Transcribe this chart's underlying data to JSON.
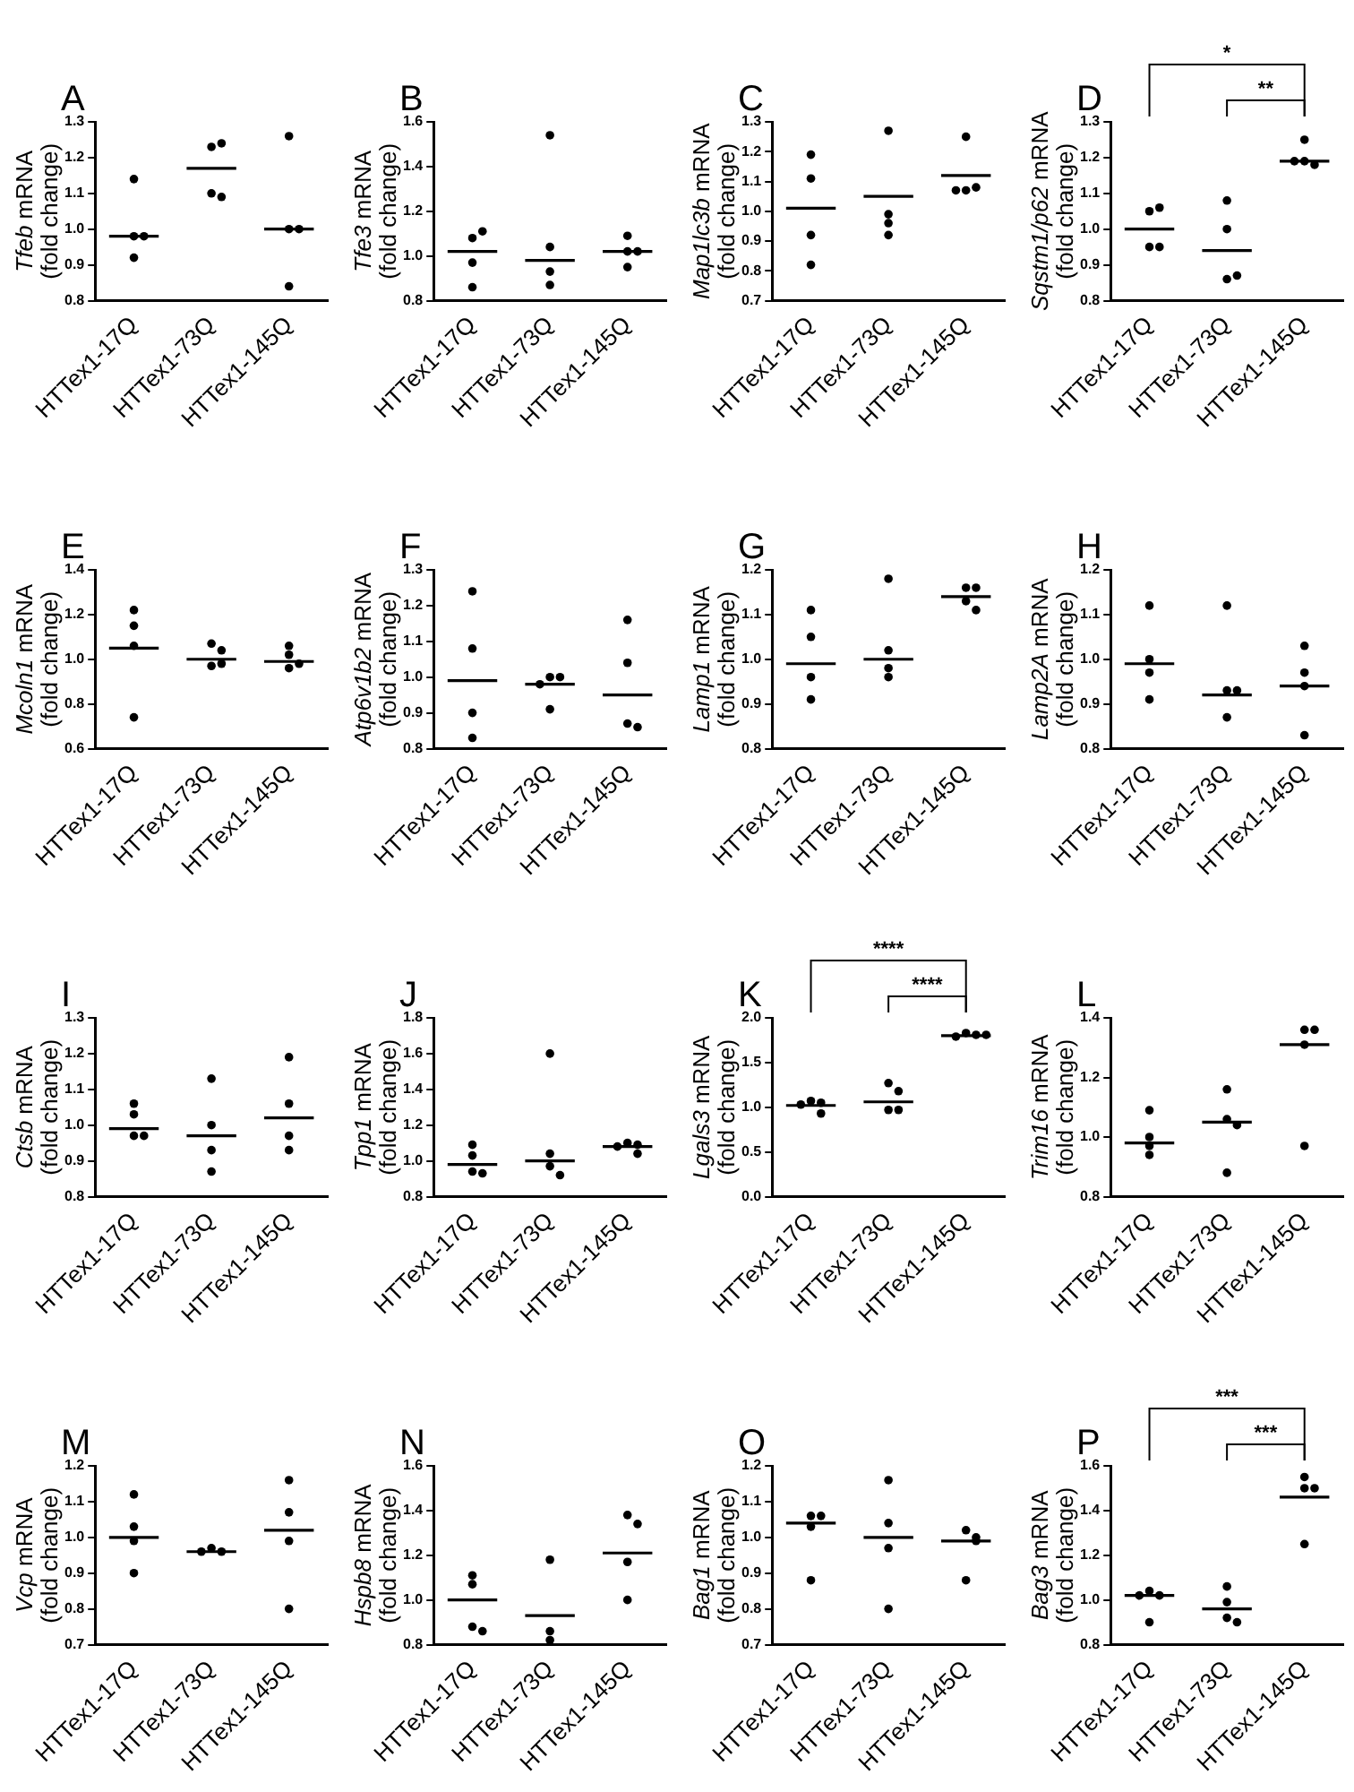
{
  "chart_data": [
    {
      "type": "scatter",
      "title": "A",
      "ylabel": "Tfeb mRNA (fold change)",
      "categories": [
        "HTTex1-17Q",
        "HTTex1-73Q",
        "HTTex1-145Q"
      ],
      "series": [
        {
          "x": [
            "HTTex1-17Q",
            "HTTex1-17Q",
            "HTTex1-17Q",
            "HTTex1-17Q",
            "HTTex1-73Q",
            "HTTex1-73Q",
            "HTTex1-73Q",
            "HTTex1-73Q",
            "HTTex1-145Q",
            "HTTex1-145Q",
            "HTTex1-145Q",
            "HTTex1-145Q"
          ],
          "values": [
            1.14,
            0.98,
            0.98,
            0.92,
            1.23,
            1.24,
            1.1,
            1.09,
            1.26,
            1.0,
            1.0,
            0.84
          ],
          "color": "#000000",
          "marker": "circle"
        },
        {
          "type": "box",
          "color": "#000000",
          "boxes": [
            {
              "low": 0.98,
              "q1": 0.98,
              "median": 0.98,
              "q3": 0.98,
              "high": 0.98
            },
            {
              "low": 1.17,
              "q1": 1.17,
              "median": 1.17,
              "q3": 1.17,
              "high": 1.17
            },
            {
              "low": 1.0,
              "q1": 1.0,
              "median": 1.0,
              "q3": 1.0,
              "high": 1.0
            }
          ]
        }
      ],
      "ylim": [
        0.8,
        1.3
      ],
      "yticks": [
        {
          "value": 0.8,
          "label": "0.8"
        },
        {
          "value": 0.9,
          "label": "0.9"
        },
        {
          "value": 1.0,
          "label": "1.0"
        },
        {
          "value": 1.1,
          "label": "1.1"
        },
        {
          "value": 1.2,
          "label": "1.2"
        },
        {
          "value": 1.3,
          "label": "1.3"
        }
      ],
      "grid": false,
      "legend": false
    },
    {
      "type": "scatter",
      "title": "B",
      "ylabel": "Tfe3 mRNA (fold change)",
      "categories": [
        "HTTex1-17Q",
        "HTTex1-73Q",
        "HTTex1-145Q"
      ],
      "series": [
        {
          "x": [
            "HTTex1-17Q",
            "HTTex1-17Q",
            "HTTex1-17Q",
            "HTTex1-17Q",
            "HTTex1-73Q",
            "HTTex1-73Q",
            "HTTex1-73Q",
            "HTTex1-73Q",
            "HTTex1-145Q",
            "HTTex1-145Q",
            "HTTex1-145Q",
            "HTTex1-145Q"
          ],
          "values": [
            1.08,
            1.11,
            0.97,
            0.86,
            1.54,
            1.04,
            0.93,
            0.87,
            1.09,
            1.02,
            1.02,
            0.95
          ],
          "color": "#000000",
          "marker": "circle"
        },
        {
          "type": "box",
          "color": "#000000",
          "boxes": [
            {
              "low": 1.02,
              "q1": 1.02,
              "median": 1.02,
              "q3": 1.02,
              "high": 1.02
            },
            {
              "low": 0.98,
              "q1": 0.98,
              "median": 0.98,
              "q3": 0.98,
              "high": 0.98
            },
            {
              "low": 1.02,
              "q1": 1.02,
              "median": 1.02,
              "q3": 1.02,
              "high": 1.02
            }
          ]
        }
      ],
      "ylim": [
        0.8,
        1.6
      ],
      "yticks": [
        {
          "value": 0.8,
          "label": "0.8"
        },
        {
          "value": 1.0,
          "label": "1.0"
        },
        {
          "value": 1.2,
          "label": "1.2"
        },
        {
          "value": 1.4,
          "label": "1.4"
        },
        {
          "value": 1.6,
          "label": "1.6"
        }
      ],
      "grid": false,
      "legend": false
    },
    {
      "type": "scatter",
      "title": "C",
      "ylabel": "Map1lc3b mRNA (fold change)",
      "categories": [
        "HTTex1-17Q",
        "HTTex1-73Q",
        "HTTex1-145Q"
      ],
      "series": [
        {
          "x": [
            "HTTex1-17Q",
            "HTTex1-17Q",
            "HTTex1-17Q",
            "HTTex1-17Q",
            "HTTex1-73Q",
            "HTTex1-73Q",
            "HTTex1-73Q",
            "HTTex1-73Q",
            "HTTex1-145Q",
            "HTTex1-145Q",
            "HTTex1-145Q",
            "HTTex1-145Q"
          ],
          "values": [
            1.19,
            1.11,
            0.92,
            0.82,
            1.27,
            0.99,
            0.96,
            0.92,
            1.25,
            1.07,
            1.08,
            1.07
          ],
          "color": "#000000",
          "marker": "circle"
        },
        {
          "type": "box",
          "color": "#000000",
          "boxes": [
            {
              "low": 1.01,
              "q1": 1.01,
              "median": 1.01,
              "q3": 1.01,
              "high": 1.01
            },
            {
              "low": 1.05,
              "q1": 1.05,
              "median": 1.05,
              "q3": 1.05,
              "high": 1.05
            },
            {
              "low": 1.12,
              "q1": 1.12,
              "median": 1.12,
              "q3": 1.12,
              "high": 1.12
            }
          ]
        }
      ],
      "ylim": [
        0.7,
        1.3
      ],
      "yticks": [
        {
          "value": 0.7,
          "label": "0.7"
        },
        {
          "value": 0.8,
          "label": "0.8"
        },
        {
          "value": 0.9,
          "label": "0.9"
        },
        {
          "value": 1.0,
          "label": "1.0"
        },
        {
          "value": 1.1,
          "label": "1.1"
        },
        {
          "value": 1.2,
          "label": "1.2"
        },
        {
          "value": 1.3,
          "label": "1.3"
        }
      ],
      "grid": false,
      "legend": false
    },
    {
      "type": "scatter",
      "title": "D",
      "ylabel": "Sqstm1/p62 mRNA (fold change)",
      "categories": [
        "HTTex1-17Q",
        "HTTex1-73Q",
        "HTTex1-145Q"
      ],
      "series": [
        {
          "x": [
            "HTTex1-17Q",
            "HTTex1-17Q",
            "HTTex1-17Q",
            "HTTex1-17Q",
            "HTTex1-73Q",
            "HTTex1-73Q",
            "HTTex1-73Q",
            "HTTex1-73Q",
            "HTTex1-145Q",
            "HTTex1-145Q",
            "HTTex1-145Q",
            "HTTex1-145Q"
          ],
          "values": [
            1.05,
            1.06,
            0.95,
            0.95,
            1.08,
            1.0,
            0.86,
            0.87,
            1.25,
            1.19,
            1.18,
            1.19
          ],
          "color": "#000000",
          "marker": "circle"
        },
        {
          "type": "box",
          "color": "#000000",
          "boxes": [
            {
              "low": 1.0,
              "q1": 1.0,
              "median": 1.0,
              "q3": 1.0,
              "high": 1.0
            },
            {
              "low": 0.94,
              "q1": 0.94,
              "median": 0.94,
              "q3": 0.94,
              "high": 0.94
            },
            {
              "low": 1.19,
              "q1": 1.19,
              "median": 1.19,
              "q3": 1.19,
              "high": 1.19
            }
          ]
        }
      ],
      "ylim": [
        0.8,
        1.3
      ],
      "yticks": [
        {
          "value": 0.8,
          "label": "0.8"
        },
        {
          "value": 0.9,
          "label": "0.9"
        },
        {
          "value": 1.0,
          "label": "1.0"
        },
        {
          "value": 1.1,
          "label": "1.1"
        },
        {
          "value": 1.2,
          "label": "1.2"
        },
        {
          "value": 1.3,
          "label": "1.3"
        }
      ],
      "grid": false,
      "legend": false,
      "annotations": [
        "*",
        "**"
      ]
    },
    {
      "type": "scatter",
      "title": "E",
      "ylabel": "Mcoln1 mRNA (fold change)",
      "categories": [
        "HTTex1-17Q",
        "HTTex1-73Q",
        "HTTex1-145Q"
      ],
      "series": [
        {
          "x": [
            "HTTex1-17Q",
            "HTTex1-17Q",
            "HTTex1-17Q",
            "HTTex1-17Q",
            "HTTex1-73Q",
            "HTTex1-73Q",
            "HTTex1-73Q",
            "HTTex1-73Q",
            "HTTex1-145Q",
            "HTTex1-145Q",
            "HTTex1-145Q",
            "HTTex1-145Q"
          ],
          "values": [
            1.22,
            1.15,
            1.06,
            0.74,
            1.07,
            1.04,
            0.97,
            0.98,
            1.06,
            1.02,
            0.96,
            0.98
          ],
          "color": "#000000",
          "marker": "circle"
        },
        {
          "type": "box",
          "color": "#000000",
          "boxes": [
            {
              "low": 1.05,
              "q1": 1.05,
              "median": 1.05,
              "q3": 1.05,
              "high": 1.05
            },
            {
              "low": 1.0,
              "q1": 1.0,
              "median": 1.0,
              "q3": 1.0,
              "high": 1.0
            },
            {
              "low": 0.99,
              "q1": 0.99,
              "median": 0.99,
              "q3": 0.99,
              "high": 0.99
            }
          ]
        }
      ],
      "ylim": [
        0.6,
        1.4
      ],
      "yticks": [
        {
          "value": 0.6,
          "label": "0.6"
        },
        {
          "value": 0.8,
          "label": "0.8"
        },
        {
          "value": 1.0,
          "label": "1.0"
        },
        {
          "value": 1.2,
          "label": "1.2"
        },
        {
          "value": 1.4,
          "label": "1.4"
        }
      ],
      "grid": false,
      "legend": false
    },
    {
      "type": "scatter",
      "title": "F",
      "ylabel": "Atp6v1b2 mRNA (fold change)",
      "categories": [
        "HTTex1-17Q",
        "HTTex1-73Q",
        "HTTex1-145Q"
      ],
      "series": [
        {
          "x": [
            "HTTex1-17Q",
            "HTTex1-17Q",
            "HTTex1-17Q",
            "HTTex1-17Q",
            "HTTex1-73Q",
            "HTTex1-73Q",
            "HTTex1-73Q",
            "HTTex1-73Q",
            "HTTex1-145Q",
            "HTTex1-145Q",
            "HTTex1-145Q",
            "HTTex1-145Q"
          ],
          "values": [
            1.24,
            1.08,
            0.9,
            0.83,
            1.0,
            1.0,
            0.98,
            0.91,
            1.16,
            1.04,
            0.87,
            0.86
          ],
          "color": "#000000",
          "marker": "circle"
        },
        {
          "type": "box",
          "color": "#000000",
          "boxes": [
            {
              "low": 0.99,
              "q1": 0.99,
              "median": 0.99,
              "q3": 0.99,
              "high": 0.99
            },
            {
              "low": 0.98,
              "q1": 0.98,
              "median": 0.98,
              "q3": 0.98,
              "high": 0.98
            },
            {
              "low": 0.95,
              "q1": 0.95,
              "median": 0.95,
              "q3": 0.95,
              "high": 0.95
            }
          ]
        }
      ],
      "ylim": [
        0.8,
        1.3
      ],
      "yticks": [
        {
          "value": 0.8,
          "label": "0.8"
        },
        {
          "value": 0.9,
          "label": "0.9"
        },
        {
          "value": 1.0,
          "label": "1.0"
        },
        {
          "value": 1.1,
          "label": "1.1"
        },
        {
          "value": 1.2,
          "label": "1.2"
        },
        {
          "value": 1.3,
          "label": "1.3"
        }
      ],
      "grid": false,
      "legend": false
    },
    {
      "type": "scatter",
      "title": "G",
      "ylabel": "Lamp1 mRNA (fold change)",
      "categories": [
        "HTTex1-17Q",
        "HTTex1-73Q",
        "HTTex1-145Q"
      ],
      "series": [
        {
          "x": [
            "HTTex1-17Q",
            "HTTex1-17Q",
            "HTTex1-17Q",
            "HTTex1-17Q",
            "HTTex1-73Q",
            "HTTex1-73Q",
            "HTTex1-73Q",
            "HTTex1-73Q",
            "HTTex1-145Q",
            "HTTex1-145Q",
            "HTTex1-145Q",
            "HTTex1-145Q"
          ],
          "values": [
            1.11,
            1.05,
            0.96,
            0.91,
            1.18,
            1.02,
            0.98,
            0.96,
            1.16,
            1.16,
            1.13,
            1.11
          ],
          "color": "#000000",
          "marker": "circle"
        },
        {
          "type": "box",
          "color": "#000000",
          "boxes": [
            {
              "low": 0.99,
              "q1": 0.99,
              "median": 0.99,
              "q3": 0.99,
              "high": 0.99
            },
            {
              "low": 1.0,
              "q1": 1.0,
              "median": 1.0,
              "q3": 1.0,
              "high": 1.0
            },
            {
              "low": 1.14,
              "q1": 1.14,
              "median": 1.14,
              "q3": 1.14,
              "high": 1.14
            }
          ]
        }
      ],
      "ylim": [
        0.8,
        1.2
      ],
      "yticks": [
        {
          "value": 0.8,
          "label": "0.8"
        },
        {
          "value": 0.9,
          "label": "0.9"
        },
        {
          "value": 1.0,
          "label": "1.0"
        },
        {
          "value": 1.1,
          "label": "1.1"
        },
        {
          "value": 1.2,
          "label": "1.2"
        }
      ],
      "grid": false,
      "legend": false
    },
    {
      "type": "scatter",
      "title": "H",
      "ylabel": "Lamp2A mRNA (fold change)",
      "categories": [
        "HTTex1-17Q",
        "HTTex1-73Q",
        "HTTex1-145Q"
      ],
      "series": [
        {
          "x": [
            "HTTex1-17Q",
            "HTTex1-17Q",
            "HTTex1-17Q",
            "HTTex1-17Q",
            "HTTex1-73Q",
            "HTTex1-73Q",
            "HTTex1-73Q",
            "HTTex1-73Q",
            "HTTex1-145Q",
            "HTTex1-145Q",
            "HTTex1-145Q",
            "HTTex1-145Q"
          ],
          "values": [
            1.12,
            1.0,
            0.97,
            0.91,
            1.12,
            0.93,
            0.93,
            0.87,
            1.03,
            0.97,
            0.94,
            0.83
          ],
          "color": "#000000",
          "marker": "circle"
        },
        {
          "type": "box",
          "color": "#000000",
          "boxes": [
            {
              "low": 0.99,
              "q1": 0.99,
              "median": 0.99,
              "q3": 0.99,
              "high": 0.99
            },
            {
              "low": 0.92,
              "q1": 0.92,
              "median": 0.92,
              "q3": 0.92,
              "high": 0.92
            },
            {
              "low": 0.94,
              "q1": 0.94,
              "median": 0.94,
              "q3": 0.94,
              "high": 0.94
            }
          ]
        }
      ],
      "ylim": [
        0.8,
        1.2
      ],
      "yticks": [
        {
          "value": 0.8,
          "label": "0.8"
        },
        {
          "value": 0.9,
          "label": "0.9"
        },
        {
          "value": 1.0,
          "label": "1.0"
        },
        {
          "value": 1.1,
          "label": "1.1"
        },
        {
          "value": 1.2,
          "label": "1.2"
        }
      ],
      "grid": false,
      "legend": false
    },
    {
      "type": "scatter",
      "title": "I",
      "ylabel": "Ctsb mRNA (fold change)",
      "categories": [
        "HTTex1-17Q",
        "HTTex1-73Q",
        "HTTex1-145Q"
      ],
      "series": [
        {
          "x": [
            "HTTex1-17Q",
            "HTTex1-17Q",
            "HTTex1-17Q",
            "HTTex1-17Q",
            "HTTex1-73Q",
            "HTTex1-73Q",
            "HTTex1-73Q",
            "HTTex1-73Q",
            "HTTex1-145Q",
            "HTTex1-145Q",
            "HTTex1-145Q",
            "HTTex1-145Q"
          ],
          "values": [
            1.06,
            1.03,
            0.97,
            0.97,
            1.13,
            1.0,
            0.93,
            0.87,
            1.19,
            1.06,
            0.97,
            0.93
          ],
          "color": "#000000",
          "marker": "circle"
        },
        {
          "type": "box",
          "color": "#000000",
          "boxes": [
            {
              "low": 0.99,
              "q1": 0.99,
              "median": 0.99,
              "q3": 0.99,
              "high": 0.99
            },
            {
              "low": 0.97,
              "q1": 0.97,
              "median": 0.97,
              "q3": 0.97,
              "high": 0.97
            },
            {
              "low": 1.02,
              "q1": 1.02,
              "median": 1.02,
              "q3": 1.02,
              "high": 1.02
            }
          ]
        }
      ],
      "ylim": [
        0.8,
        1.3
      ],
      "yticks": [
        {
          "value": 0.8,
          "label": "0.8"
        },
        {
          "value": 0.9,
          "label": "0.9"
        },
        {
          "value": 1.0,
          "label": "1.0"
        },
        {
          "value": 1.1,
          "label": "1.1"
        },
        {
          "value": 1.2,
          "label": "1.2"
        },
        {
          "value": 1.3,
          "label": "1.3"
        }
      ],
      "grid": false,
      "legend": false
    },
    {
      "type": "scatter",
      "title": "J",
      "ylabel": "Tpp1 mRNA (fold change)",
      "categories": [
        "HTTex1-17Q",
        "HTTex1-73Q",
        "HTTex1-145Q"
      ],
      "series": [
        {
          "x": [
            "HTTex1-17Q",
            "HTTex1-17Q",
            "HTTex1-17Q",
            "HTTex1-17Q",
            "HTTex1-73Q",
            "HTTex1-73Q",
            "HTTex1-73Q",
            "HTTex1-73Q",
            "HTTex1-145Q",
            "HTTex1-145Q",
            "HTTex1-145Q",
            "HTTex1-145Q"
          ],
          "values": [
            1.09,
            1.03,
            0.94,
            0.93,
            1.6,
            1.04,
            0.97,
            0.92,
            1.1,
            1.09,
            1.08,
            1.04
          ],
          "color": "#000000",
          "marker": "circle"
        },
        {
          "type": "box",
          "color": "#000000",
          "boxes": [
            {
              "low": 0.98,
              "q1": 0.98,
              "median": 0.98,
              "q3": 0.98,
              "high": 0.98
            },
            {
              "low": 1.0,
              "q1": 1.0,
              "median": 1.0,
              "q3": 1.0,
              "high": 1.0
            },
            {
              "low": 1.08,
              "q1": 1.08,
              "median": 1.08,
              "q3": 1.08,
              "high": 1.08
            }
          ]
        }
      ],
      "ylim": [
        0.8,
        1.8
      ],
      "yticks": [
        {
          "value": 0.8,
          "label": "0.8"
        },
        {
          "value": 1.0,
          "label": "1.0"
        },
        {
          "value": 1.2,
          "label": "1.2"
        },
        {
          "value": 1.4,
          "label": "1.4"
        },
        {
          "value": 1.6,
          "label": "1.6"
        },
        {
          "value": 1.8,
          "label": "1.8"
        }
      ],
      "grid": false,
      "legend": false
    },
    {
      "type": "scatter",
      "title": "K",
      "ylabel": "Lgals3 mRNA (fold change)",
      "categories": [
        "HTTex1-17Q",
        "HTTex1-73Q",
        "HTTex1-145Q"
      ],
      "series": [
        {
          "x": [
            "HTTex1-17Q",
            "HTTex1-17Q",
            "HTTex1-17Q",
            "HTTex1-17Q",
            "HTTex1-73Q",
            "HTTex1-73Q",
            "HTTex1-73Q",
            "HTTex1-73Q",
            "HTTex1-145Q",
            "HTTex1-145Q",
            "HTTex1-145Q",
            "HTTex1-145Q"
          ],
          "values": [
            1.07,
            1.05,
            1.03,
            0.93,
            1.27,
            1.18,
            0.97,
            0.97,
            1.83,
            1.81,
            1.79,
            1.81
          ],
          "color": "#000000",
          "marker": "circle"
        },
        {
          "type": "box",
          "color": "#000000",
          "boxes": [
            {
              "low": 1.02,
              "q1": 1.02,
              "median": 1.02,
              "q3": 1.02,
              "high": 1.02
            },
            {
              "low": 1.06,
              "q1": 1.06,
              "median": 1.06,
              "q3": 1.06,
              "high": 1.06
            },
            {
              "low": 1.8,
              "q1": 1.8,
              "median": 1.8,
              "q3": 1.8,
              "high": 1.8
            }
          ]
        }
      ],
      "ylim": [
        0,
        2
      ],
      "yticks": [
        {
          "value": 0,
          "label": "0.0"
        },
        {
          "value": 0.5,
          "label": "0.5"
        },
        {
          "value": 1,
          "label": "1.0"
        },
        {
          "value": 1.5,
          "label": "1.5"
        },
        {
          "value": 2,
          "label": "2.0"
        }
      ],
      "grid": false,
      "legend": false,
      "annotations": [
        "****",
        "****"
      ]
    },
    {
      "type": "scatter",
      "title": "L",
      "ylabel": "Trim16 mRNA (fold change)",
      "categories": [
        "HTTex1-17Q",
        "HTTex1-73Q",
        "HTTex1-145Q"
      ],
      "series": [
        {
          "x": [
            "HTTex1-17Q",
            "HTTex1-17Q",
            "HTTex1-17Q",
            "HTTex1-17Q",
            "HTTex1-73Q",
            "HTTex1-73Q",
            "HTTex1-73Q",
            "HTTex1-73Q",
            "HTTex1-145Q",
            "HTTex1-145Q",
            "HTTex1-145Q",
            "HTTex1-145Q"
          ],
          "values": [
            1.09,
            1.0,
            0.97,
            0.94,
            1.16,
            1.06,
            1.04,
            0.88,
            1.36,
            1.36,
            1.31,
            0.97
          ],
          "color": "#000000",
          "marker": "circle"
        },
        {
          "type": "box",
          "color": "#000000",
          "boxes": [
            {
              "low": 0.98,
              "q1": 0.98,
              "median": 0.98,
              "q3": 0.98,
              "high": 0.98
            },
            {
              "low": 1.05,
              "q1": 1.05,
              "median": 1.05,
              "q3": 1.05,
              "high": 1.05
            },
            {
              "low": 1.31,
              "q1": 1.31,
              "median": 1.31,
              "q3": 1.31,
              "high": 1.31
            }
          ]
        }
      ],
      "ylim": [
        0.8,
        1.4
      ],
      "yticks": [
        {
          "value": 0.8,
          "label": "0.8"
        },
        {
          "value": 1.0,
          "label": "1.0"
        },
        {
          "value": 1.2,
          "label": "1.2"
        },
        {
          "value": 1.4,
          "label": "1.4"
        }
      ],
      "grid": false,
      "legend": false
    },
    {
      "type": "scatter",
      "title": "M",
      "ylabel": "Vcp mRNA (fold change)",
      "categories": [
        "HTTex1-17Q",
        "HTTex1-73Q",
        "HTTex1-145Q"
      ],
      "series": [
        {
          "x": [
            "HTTex1-17Q",
            "HTTex1-17Q",
            "HTTex1-17Q",
            "HTTex1-17Q",
            "HTTex1-73Q",
            "HTTex1-73Q",
            "HTTex1-73Q",
            "HTTex1-145Q",
            "HTTex1-145Q",
            "HTTex1-145Q",
            "HTTex1-145Q"
          ],
          "values": [
            1.12,
            1.03,
            0.99,
            0.9,
            0.97,
            0.96,
            0.96,
            1.16,
            1.07,
            0.99,
            0.8
          ],
          "color": "#000000",
          "marker": "circle"
        },
        {
          "type": "box",
          "color": "#000000",
          "boxes": [
            {
              "low": 1.0,
              "q1": 1.0,
              "median": 1.0,
              "q3": 1.0,
              "high": 1.0
            },
            {
              "low": 0.96,
              "q1": 0.96,
              "median": 0.96,
              "q3": 0.96,
              "high": 0.96
            },
            {
              "low": 1.02,
              "q1": 1.02,
              "median": 1.02,
              "q3": 1.02,
              "high": 1.02
            }
          ]
        }
      ],
      "ylim": [
        0.7,
        1.2
      ],
      "yticks": [
        {
          "value": 0.7,
          "label": "0.7"
        },
        {
          "value": 0.8,
          "label": "0.8"
        },
        {
          "value": 0.9,
          "label": "0.9"
        },
        {
          "value": 1.0,
          "label": "1.0"
        },
        {
          "value": 1.1,
          "label": "1.1"
        },
        {
          "value": 1.2,
          "label": "1.2"
        }
      ],
      "grid": false,
      "legend": false
    },
    {
      "type": "scatter",
      "title": "N",
      "ylabel": "Hspb8 mRNA (fold change)",
      "categories": [
        "HTTex1-17Q",
        "HTTex1-73Q",
        "HTTex1-145Q"
      ],
      "series": [
        {
          "x": [
            "HTTex1-17Q",
            "HTTex1-17Q",
            "HTTex1-17Q",
            "HTTex1-17Q",
            "HTTex1-73Q",
            "HTTex1-73Q",
            "HTTex1-73Q",
            "HTTex1-145Q",
            "HTTex1-145Q",
            "HTTex1-145Q",
            "HTTex1-145Q"
          ],
          "values": [
            1.11,
            1.07,
            0.88,
            0.86,
            1.18,
            0.86,
            0.82,
            1.38,
            1.34,
            1.17,
            1.0
          ],
          "color": "#000000",
          "marker": "circle"
        },
        {
          "type": "box",
          "color": "#000000",
          "boxes": [
            {
              "low": 1.0,
              "q1": 1.0,
              "median": 1.0,
              "q3": 1.0,
              "high": 1.0
            },
            {
              "low": 0.93,
              "q1": 0.93,
              "median": 0.93,
              "q3": 0.93,
              "high": 0.93
            },
            {
              "low": 1.21,
              "q1": 1.21,
              "median": 1.21,
              "q3": 1.21,
              "high": 1.21
            }
          ]
        }
      ],
      "ylim": [
        0.8,
        1.6
      ],
      "yticks": [
        {
          "value": 0.8,
          "label": "0.8"
        },
        {
          "value": 1.0,
          "label": "1.0"
        },
        {
          "value": 1.2,
          "label": "1.2"
        },
        {
          "value": 1.4,
          "label": "1.4"
        },
        {
          "value": 1.6,
          "label": "1.6"
        }
      ],
      "grid": false,
      "legend": false
    },
    {
      "type": "scatter",
      "title": "O",
      "ylabel": "Bag1 mRNA (fold change)",
      "categories": [
        "HTTex1-17Q",
        "HTTex1-73Q",
        "HTTex1-145Q"
      ],
      "series": [
        {
          "x": [
            "HTTex1-17Q",
            "HTTex1-17Q",
            "HTTex1-17Q",
            "HTTex1-17Q",
            "HTTex1-73Q",
            "HTTex1-73Q",
            "HTTex1-73Q",
            "HTTex1-73Q",
            "HTTex1-145Q",
            "HTTex1-145Q",
            "HTTex1-145Q",
            "HTTex1-145Q"
          ],
          "values": [
            1.06,
            1.06,
            1.03,
            0.88,
            1.16,
            1.04,
            0.97,
            0.8,
            1.02,
            1.0,
            0.99,
            0.88
          ],
          "color": "#000000",
          "marker": "circle"
        },
        {
          "type": "box",
          "color": "#000000",
          "boxes": [
            {
              "low": 1.04,
              "q1": 1.04,
              "median": 1.04,
              "q3": 1.04,
              "high": 1.04
            },
            {
              "low": 1.0,
              "q1": 1.0,
              "median": 1.0,
              "q3": 1.0,
              "high": 1.0
            },
            {
              "low": 0.99,
              "q1": 0.99,
              "median": 0.99,
              "q3": 0.99,
              "high": 0.99
            }
          ]
        }
      ],
      "ylim": [
        0.7,
        1.2
      ],
      "yticks": [
        {
          "value": 0.7,
          "label": "0.7"
        },
        {
          "value": 0.8,
          "label": "0.8"
        },
        {
          "value": 0.9,
          "label": "0.9"
        },
        {
          "value": 1.0,
          "label": "1.0"
        },
        {
          "value": 1.1,
          "label": "1.1"
        },
        {
          "value": 1.2,
          "label": "1.2"
        }
      ],
      "grid": false,
      "legend": false
    },
    {
      "type": "scatter",
      "title": "P",
      "ylabel": "Bag3 mRNA (fold change)",
      "categories": [
        "HTTex1-17Q",
        "HTTex1-73Q",
        "HTTex1-145Q"
      ],
      "series": [
        {
          "x": [
            "HTTex1-17Q",
            "HTTex1-17Q",
            "HTTex1-17Q",
            "HTTex1-17Q",
            "HTTex1-73Q",
            "HTTex1-73Q",
            "HTTex1-73Q",
            "HTTex1-73Q",
            "HTTex1-145Q",
            "HTTex1-145Q",
            "HTTex1-145Q",
            "HTTex1-145Q"
          ],
          "values": [
            1.04,
            1.02,
            1.02,
            0.9,
            1.06,
            0.99,
            0.92,
            0.9,
            1.55,
            1.5,
            1.5,
            1.25
          ],
          "color": "#000000",
          "marker": "circle"
        },
        {
          "type": "box",
          "color": "#000000",
          "boxes": [
            {
              "low": 1.02,
              "q1": 1.02,
              "median": 1.02,
              "q3": 1.02,
              "high": 1.02
            },
            {
              "low": 0.96,
              "q1": 0.96,
              "median": 0.96,
              "q3": 0.96,
              "high": 0.96
            },
            {
              "low": 1.46,
              "q1": 1.46,
              "median": 1.46,
              "q3": 1.46,
              "high": 1.46
            }
          ]
        }
      ],
      "ylim": [
        0.8,
        1.6
      ],
      "yticks": [
        {
          "value": 0.8,
          "label": "0.8"
        },
        {
          "value": 1.0,
          "label": "1.0"
        },
        {
          "value": 1.2,
          "label": "1.2"
        },
        {
          "value": 1.4,
          "label": "1.4"
        },
        {
          "value": 1.6,
          "label": "1.6"
        }
      ],
      "grid": false,
      "legend": false,
      "annotations": [
        "***",
        "***"
      ]
    }
  ]
}
